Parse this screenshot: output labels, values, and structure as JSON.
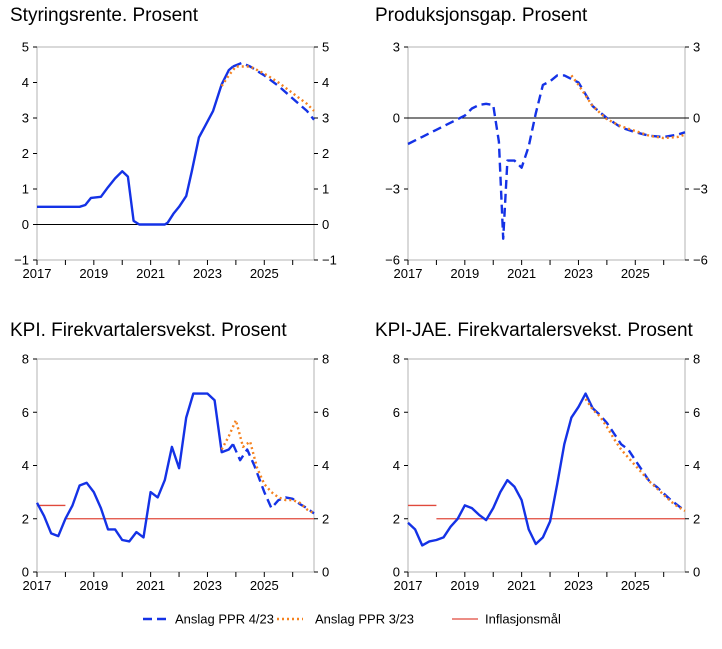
{
  "legend": [
    {
      "label": "Anslag PPR 4/23",
      "color": "#1432e6",
      "style": "dashed"
    },
    {
      "label": "Anslag PPR 3/23",
      "color": "#f5821f",
      "style": "dotted"
    },
    {
      "label": "Inflasjonsmål",
      "color": "#e0493c",
      "style": "solid"
    }
  ],
  "chart_data": [
    {
      "type": "line",
      "title": "Styringsrente. Prosent",
      "xlim": [
        2017,
        2026.75
      ],
      "xticks": [
        "2017",
        "2019",
        "2021",
        "2023",
        "2025"
      ],
      "ylim": [
        -1,
        5
      ],
      "yticks": [
        "5",
        "4",
        "3",
        "2",
        "1",
        "0",
        "−1"
      ],
      "zero_line": 0,
      "series": [
        {
          "name": "Historikk",
          "color": "#1432e6",
          "style": "solid",
          "x": [
            2017,
            2017.5,
            2018,
            2018.5,
            2018.7,
            2018.9,
            2019.25,
            2019.5,
            2019.75,
            2020.0,
            2020.2,
            2020.4,
            2020.6,
            2021.0,
            2021.5,
            2021.6,
            2021.8,
            2022.0,
            2022.25,
            2022.45,
            2022.7,
            2022.9,
            2023.2,
            2023.5,
            2023.75,
            2023.9
          ],
          "y": [
            0.5,
            0.5,
            0.5,
            0.5,
            0.55,
            0.75,
            0.78,
            1.05,
            1.3,
            1.5,
            1.35,
            0.1,
            0.0,
            0.0,
            0.0,
            0.05,
            0.3,
            0.5,
            0.8,
            1.5,
            2.45,
            2.75,
            3.2,
            3.95,
            4.35,
            4.45
          ]
        },
        {
          "name": "Anslag PPR 4/23",
          "color": "#1432e6",
          "style": "dashed",
          "x": [
            2023.9,
            2024.2,
            2024.5,
            2025.0,
            2025.5,
            2026.0,
            2026.5,
            2026.75
          ],
          "y": [
            4.45,
            4.55,
            4.45,
            4.2,
            3.9,
            3.55,
            3.2,
            2.95
          ]
        },
        {
          "name": "Anslag PPR 3/23",
          "color": "#f5821f",
          "style": "dotted",
          "x": [
            2023.5,
            2023.75,
            2024.0,
            2024.5,
            2025.0,
            2025.5,
            2026.0,
            2026.5,
            2026.75
          ],
          "y": [
            3.9,
            4.2,
            4.45,
            4.45,
            4.25,
            4.0,
            3.7,
            3.4,
            3.2
          ]
        }
      ]
    },
    {
      "type": "line",
      "title": "Produksjonsgap. Prosent",
      "xlim": [
        2017,
        2026.75
      ],
      "xticks": [
        "2017",
        "2019",
        "2021",
        "2023",
        "2025"
      ],
      "ylim": [
        -6,
        3
      ],
      "yticks": [
        "3",
        "0",
        "−3",
        "−6"
      ],
      "zero_line": 0,
      "series": [
        {
          "name": "Anslag PPR 4/23",
          "color": "#1432e6",
          "style": "dashed",
          "x": [
            2017,
            2017.5,
            2018,
            2018.5,
            2019,
            2019.25,
            2019.5,
            2019.75,
            2020.0,
            2020.2,
            2020.35,
            2020.5,
            2020.75,
            2021.0,
            2021.25,
            2021.5,
            2021.75,
            2022.0,
            2022.25,
            2022.5,
            2023.0,
            2023.5,
            2024.0,
            2024.5,
            2025.0,
            2025.5,
            2026.0,
            2026.5,
            2026.75
          ],
          "y": [
            -1.1,
            -0.8,
            -0.5,
            -0.2,
            0.1,
            0.4,
            0.55,
            0.6,
            0.55,
            -1.0,
            -5.1,
            -1.8,
            -1.8,
            -2.1,
            -1.2,
            0.2,
            1.4,
            1.55,
            1.8,
            1.8,
            1.5,
            0.5,
            0.0,
            -0.4,
            -0.6,
            -0.75,
            -0.8,
            -0.7,
            -0.6
          ]
        },
        {
          "name": "Anslag PPR 3/23",
          "color": "#f5821f",
          "style": "dotted",
          "x": [
            2022.75,
            2023.0,
            2023.5,
            2024.0,
            2024.5,
            2025.0,
            2025.5,
            2026.0,
            2026.5,
            2026.75
          ],
          "y": [
            1.8,
            1.4,
            0.5,
            -0.05,
            -0.35,
            -0.55,
            -0.75,
            -0.85,
            -0.8,
            -0.7
          ]
        }
      ]
    },
    {
      "type": "line",
      "title": "KPI. Firekvartalersvekst. Prosent",
      "xlim": [
        2017,
        2026.75
      ],
      "xticks": [
        "2017",
        "2019",
        "2021",
        "2023",
        "2025"
      ],
      "ylim": [
        0,
        8
      ],
      "yticks": [
        "8",
        "6",
        "4",
        "2",
        "0"
      ],
      "target": {
        "value": 2.5,
        "x": [
          2017,
          2018
        ],
        "value2": 2.0,
        "x2": [
          2018,
          2026.75
        ]
      },
      "series": [
        {
          "name": "Historikk",
          "color": "#1432e6",
          "style": "solid",
          "x": [
            2017,
            2017.25,
            2017.5,
            2017.75,
            2018.0,
            2018.25,
            2018.5,
            2018.75,
            2019.0,
            2019.25,
            2019.5,
            2019.75,
            2020.0,
            2020.25,
            2020.5,
            2020.75,
            2021.0,
            2021.25,
            2021.5,
            2021.75,
            2022.0,
            2022.25,
            2022.5,
            2022.75,
            2023.0,
            2023.25,
            2023.5,
            2023.75,
            2023.9
          ],
          "y": [
            2.6,
            2.1,
            1.45,
            1.35,
            2.0,
            2.5,
            3.25,
            3.35,
            3.0,
            2.4,
            1.6,
            1.6,
            1.2,
            1.15,
            1.5,
            1.3,
            3.0,
            2.8,
            3.45,
            4.7,
            3.9,
            5.8,
            6.7,
            6.7,
            6.7,
            6.45,
            4.5,
            4.6,
            4.8
          ]
        },
        {
          "name": "Anslag PPR 4/23",
          "color": "#1432e6",
          "style": "dashed",
          "x": [
            2023.9,
            2024.15,
            2024.4,
            2024.65,
            2025.0,
            2025.25,
            2025.5,
            2025.75,
            2026.0,
            2026.25,
            2026.5,
            2026.75
          ],
          "y": [
            4.8,
            4.2,
            4.6,
            4.0,
            3.0,
            2.4,
            2.7,
            2.8,
            2.75,
            2.55,
            2.4,
            2.2
          ]
        },
        {
          "name": "Anslag PPR 3/23",
          "color": "#f5821f",
          "style": "dotted",
          "x": [
            2023.5,
            2023.75,
            2024.0,
            2024.25,
            2024.5,
            2024.75,
            2025.0,
            2025.25,
            2025.5,
            2025.75,
            2026.0,
            2026.25,
            2026.5,
            2026.75
          ],
          "y": [
            4.6,
            5.1,
            5.7,
            4.7,
            4.9,
            3.9,
            3.3,
            3.0,
            2.8,
            2.7,
            2.7,
            2.6,
            2.35,
            2.2
          ]
        }
      ]
    },
    {
      "type": "line",
      "title": "KPI-JAE. Firekvartalersvekst. Prosent",
      "xlim": [
        2017,
        2026.75
      ],
      "xticks": [
        "2017",
        "2019",
        "2021",
        "2023",
        "2025"
      ],
      "ylim": [
        0,
        8
      ],
      "yticks": [
        "8",
        "6",
        "4",
        "2",
        "0"
      ],
      "target": {
        "value": 2.5,
        "x": [
          2017,
          2018
        ],
        "value2": 2.0,
        "x2": [
          2018,
          2026.75
        ]
      },
      "series": [
        {
          "name": "Historikk",
          "color": "#1432e6",
          "style": "solid",
          "x": [
            2017,
            2017.25,
            2017.5,
            2017.75,
            2018.0,
            2018.25,
            2018.5,
            2018.75,
            2019.0,
            2019.25,
            2019.5,
            2019.75,
            2020.0,
            2020.25,
            2020.5,
            2020.75,
            2021.0,
            2021.25,
            2021.5,
            2021.75,
            2022.0,
            2022.25,
            2022.5,
            2022.75,
            2023.0,
            2023.25,
            2023.5
          ],
          "y": [
            1.85,
            1.6,
            1.0,
            1.15,
            1.2,
            1.3,
            1.7,
            2.0,
            2.5,
            2.4,
            2.15,
            1.95,
            2.4,
            3.0,
            3.45,
            3.2,
            2.7,
            1.6,
            1.05,
            1.3,
            1.9,
            3.3,
            4.8,
            5.8,
            6.2,
            6.7,
            6.15
          ]
        },
        {
          "name": "Anslag PPR 4/23",
          "color": "#1432e6",
          "style": "dashed",
          "x": [
            2023.5,
            2023.75,
            2024.0,
            2024.25,
            2024.5,
            2024.75,
            2025.0,
            2025.25,
            2025.5,
            2025.75,
            2026.0,
            2026.25,
            2026.5,
            2026.75
          ],
          "y": [
            6.15,
            5.9,
            5.6,
            5.2,
            4.8,
            4.6,
            4.2,
            3.8,
            3.4,
            3.2,
            2.95,
            2.7,
            2.5,
            2.3
          ]
        },
        {
          "name": "Anslag PPR 3/23",
          "color": "#f5821f",
          "style": "dotted",
          "x": [
            2023.25,
            2023.5,
            2023.75,
            2024.0,
            2024.25,
            2024.5,
            2024.75,
            2025.0,
            2025.25,
            2025.5,
            2025.75,
            2026.0,
            2026.25,
            2026.5,
            2026.75
          ],
          "y": [
            6.5,
            6.1,
            5.85,
            5.45,
            5.0,
            4.6,
            4.3,
            4.0,
            3.7,
            3.4,
            3.15,
            2.9,
            2.65,
            2.45,
            2.3
          ]
        }
      ]
    }
  ]
}
